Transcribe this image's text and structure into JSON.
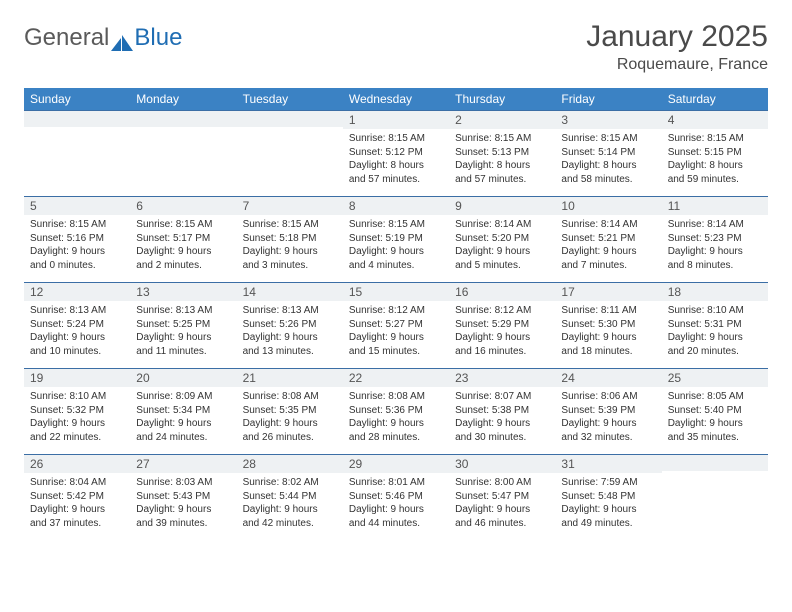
{
  "brand": {
    "part1": "General",
    "part2": "Blue"
  },
  "title": "January 2025",
  "location": "Roquemaure, France",
  "colors": {
    "header_bg": "#3b82c4",
    "header_text": "#ffffff",
    "row_border": "#3b6ea5",
    "daynum_bg": "#eef1f3",
    "brand_gray": "#5a5a5a",
    "brand_blue": "#1f6db3"
  },
  "weekdays": [
    "Sunday",
    "Monday",
    "Tuesday",
    "Wednesday",
    "Thursday",
    "Friday",
    "Saturday"
  ],
  "weeks": [
    [
      {
        "n": "",
        "sunrise": "",
        "sunset": "",
        "daylight": ""
      },
      {
        "n": "",
        "sunrise": "",
        "sunset": "",
        "daylight": ""
      },
      {
        "n": "",
        "sunrise": "",
        "sunset": "",
        "daylight": ""
      },
      {
        "n": "1",
        "sunrise": "Sunrise: 8:15 AM",
        "sunset": "Sunset: 5:12 PM",
        "daylight": "Daylight: 8 hours and 57 minutes."
      },
      {
        "n": "2",
        "sunrise": "Sunrise: 8:15 AM",
        "sunset": "Sunset: 5:13 PM",
        "daylight": "Daylight: 8 hours and 57 minutes."
      },
      {
        "n": "3",
        "sunrise": "Sunrise: 8:15 AM",
        "sunset": "Sunset: 5:14 PM",
        "daylight": "Daylight: 8 hours and 58 minutes."
      },
      {
        "n": "4",
        "sunrise": "Sunrise: 8:15 AM",
        "sunset": "Sunset: 5:15 PM",
        "daylight": "Daylight: 8 hours and 59 minutes."
      }
    ],
    [
      {
        "n": "5",
        "sunrise": "Sunrise: 8:15 AM",
        "sunset": "Sunset: 5:16 PM",
        "daylight": "Daylight: 9 hours and 0 minutes."
      },
      {
        "n": "6",
        "sunrise": "Sunrise: 8:15 AM",
        "sunset": "Sunset: 5:17 PM",
        "daylight": "Daylight: 9 hours and 2 minutes."
      },
      {
        "n": "7",
        "sunrise": "Sunrise: 8:15 AM",
        "sunset": "Sunset: 5:18 PM",
        "daylight": "Daylight: 9 hours and 3 minutes."
      },
      {
        "n": "8",
        "sunrise": "Sunrise: 8:15 AM",
        "sunset": "Sunset: 5:19 PM",
        "daylight": "Daylight: 9 hours and 4 minutes."
      },
      {
        "n": "9",
        "sunrise": "Sunrise: 8:14 AM",
        "sunset": "Sunset: 5:20 PM",
        "daylight": "Daylight: 9 hours and 5 minutes."
      },
      {
        "n": "10",
        "sunrise": "Sunrise: 8:14 AM",
        "sunset": "Sunset: 5:21 PM",
        "daylight": "Daylight: 9 hours and 7 minutes."
      },
      {
        "n": "11",
        "sunrise": "Sunrise: 8:14 AM",
        "sunset": "Sunset: 5:23 PM",
        "daylight": "Daylight: 9 hours and 8 minutes."
      }
    ],
    [
      {
        "n": "12",
        "sunrise": "Sunrise: 8:13 AM",
        "sunset": "Sunset: 5:24 PM",
        "daylight": "Daylight: 9 hours and 10 minutes."
      },
      {
        "n": "13",
        "sunrise": "Sunrise: 8:13 AM",
        "sunset": "Sunset: 5:25 PM",
        "daylight": "Daylight: 9 hours and 11 minutes."
      },
      {
        "n": "14",
        "sunrise": "Sunrise: 8:13 AM",
        "sunset": "Sunset: 5:26 PM",
        "daylight": "Daylight: 9 hours and 13 minutes."
      },
      {
        "n": "15",
        "sunrise": "Sunrise: 8:12 AM",
        "sunset": "Sunset: 5:27 PM",
        "daylight": "Daylight: 9 hours and 15 minutes."
      },
      {
        "n": "16",
        "sunrise": "Sunrise: 8:12 AM",
        "sunset": "Sunset: 5:29 PM",
        "daylight": "Daylight: 9 hours and 16 minutes."
      },
      {
        "n": "17",
        "sunrise": "Sunrise: 8:11 AM",
        "sunset": "Sunset: 5:30 PM",
        "daylight": "Daylight: 9 hours and 18 minutes."
      },
      {
        "n": "18",
        "sunrise": "Sunrise: 8:10 AM",
        "sunset": "Sunset: 5:31 PM",
        "daylight": "Daylight: 9 hours and 20 minutes."
      }
    ],
    [
      {
        "n": "19",
        "sunrise": "Sunrise: 8:10 AM",
        "sunset": "Sunset: 5:32 PM",
        "daylight": "Daylight: 9 hours and 22 minutes."
      },
      {
        "n": "20",
        "sunrise": "Sunrise: 8:09 AM",
        "sunset": "Sunset: 5:34 PM",
        "daylight": "Daylight: 9 hours and 24 minutes."
      },
      {
        "n": "21",
        "sunrise": "Sunrise: 8:08 AM",
        "sunset": "Sunset: 5:35 PM",
        "daylight": "Daylight: 9 hours and 26 minutes."
      },
      {
        "n": "22",
        "sunrise": "Sunrise: 8:08 AM",
        "sunset": "Sunset: 5:36 PM",
        "daylight": "Daylight: 9 hours and 28 minutes."
      },
      {
        "n": "23",
        "sunrise": "Sunrise: 8:07 AM",
        "sunset": "Sunset: 5:38 PM",
        "daylight": "Daylight: 9 hours and 30 minutes."
      },
      {
        "n": "24",
        "sunrise": "Sunrise: 8:06 AM",
        "sunset": "Sunset: 5:39 PM",
        "daylight": "Daylight: 9 hours and 32 minutes."
      },
      {
        "n": "25",
        "sunrise": "Sunrise: 8:05 AM",
        "sunset": "Sunset: 5:40 PM",
        "daylight": "Daylight: 9 hours and 35 minutes."
      }
    ],
    [
      {
        "n": "26",
        "sunrise": "Sunrise: 8:04 AM",
        "sunset": "Sunset: 5:42 PM",
        "daylight": "Daylight: 9 hours and 37 minutes."
      },
      {
        "n": "27",
        "sunrise": "Sunrise: 8:03 AM",
        "sunset": "Sunset: 5:43 PM",
        "daylight": "Daylight: 9 hours and 39 minutes."
      },
      {
        "n": "28",
        "sunrise": "Sunrise: 8:02 AM",
        "sunset": "Sunset: 5:44 PM",
        "daylight": "Daylight: 9 hours and 42 minutes."
      },
      {
        "n": "29",
        "sunrise": "Sunrise: 8:01 AM",
        "sunset": "Sunset: 5:46 PM",
        "daylight": "Daylight: 9 hours and 44 minutes."
      },
      {
        "n": "30",
        "sunrise": "Sunrise: 8:00 AM",
        "sunset": "Sunset: 5:47 PM",
        "daylight": "Daylight: 9 hours and 46 minutes."
      },
      {
        "n": "31",
        "sunrise": "Sunrise: 7:59 AM",
        "sunset": "Sunset: 5:48 PM",
        "daylight": "Daylight: 9 hours and 49 minutes."
      },
      {
        "n": "",
        "sunrise": "",
        "sunset": "",
        "daylight": ""
      }
    ]
  ]
}
